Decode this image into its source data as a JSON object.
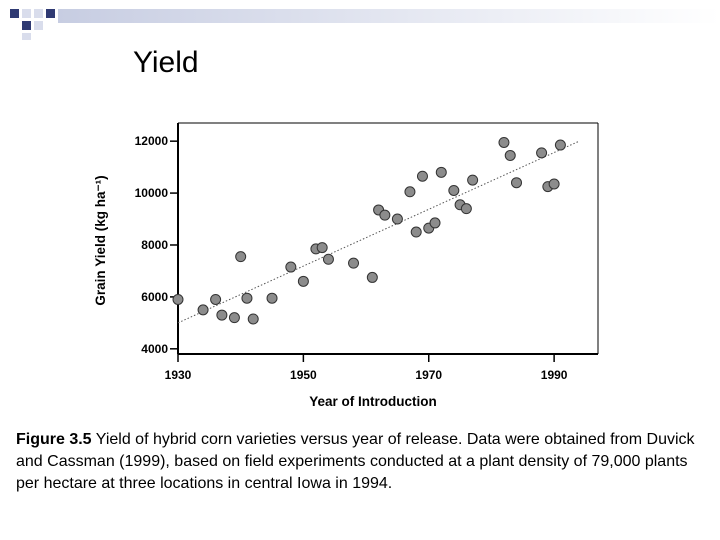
{
  "slide": {
    "title": "Yield"
  },
  "caption": {
    "label": "Figure 3.5",
    "text": " Yield of hybrid corn varieties versus year of release. Data were obtained from Duvick and Cassman (1999), based on field experiments conducted at a plant density of 79,000 plants per hectare at three locations in central Iowa in 1994."
  },
  "chart_data": {
    "type": "scatter",
    "title": "",
    "xlabel": "Year of Introduction",
    "ylabel": "Grain Yield (kg ha⁻¹)",
    "xlim": [
      1930,
      1997
    ],
    "ylim": [
      3800,
      12700
    ],
    "xticks": [
      1930,
      1950,
      1970,
      1990
    ],
    "yticks": [
      4000,
      6000,
      8000,
      10000,
      12000
    ],
    "grid": false,
    "trendline": {
      "style": "dotted",
      "from": [
        1930,
        5000
      ],
      "to": [
        1994,
        12000
      ]
    },
    "series": [
      {
        "points": [
          [
            1930,
            5900
          ],
          [
            1934,
            5500
          ],
          [
            1936,
            5900
          ],
          [
            1937,
            5300
          ],
          [
            1939,
            5200
          ],
          [
            1940,
            7550
          ],
          [
            1941,
            5950
          ],
          [
            1942,
            5150
          ],
          [
            1945,
            5950
          ],
          [
            1948,
            7150
          ],
          [
            1950,
            6600
          ],
          [
            1952,
            7850
          ],
          [
            1953,
            7900
          ],
          [
            1954,
            7450
          ],
          [
            1958,
            7300
          ],
          [
            1961,
            6750
          ],
          [
            1962,
            9350
          ],
          [
            1963,
            9150
          ],
          [
            1965,
            9000
          ],
          [
            1967,
            10050
          ],
          [
            1968,
            8500
          ],
          [
            1969,
            10650
          ],
          [
            1970,
            8650
          ],
          [
            1971,
            8850
          ],
          [
            1972,
            10800
          ],
          [
            1974,
            10100
          ],
          [
            1975,
            9550
          ],
          [
            1976,
            9400
          ],
          [
            1977,
            10500
          ],
          [
            1982,
            11950
          ],
          [
            1983,
            11450
          ],
          [
            1984,
            10400
          ],
          [
            1988,
            11550
          ],
          [
            1989,
            10250
          ],
          [
            1990,
            10350
          ],
          [
            1991,
            11850
          ]
        ]
      }
    ]
  },
  "colors": {
    "marker_fill": "#8c8c8c",
    "marker_stroke": "#333333",
    "axis": "#000000",
    "trend": "#555555",
    "bar_navy": "#2f3a73",
    "bar_light": "#d9ddec",
    "bar_gradient_end": "#ffffff"
  }
}
